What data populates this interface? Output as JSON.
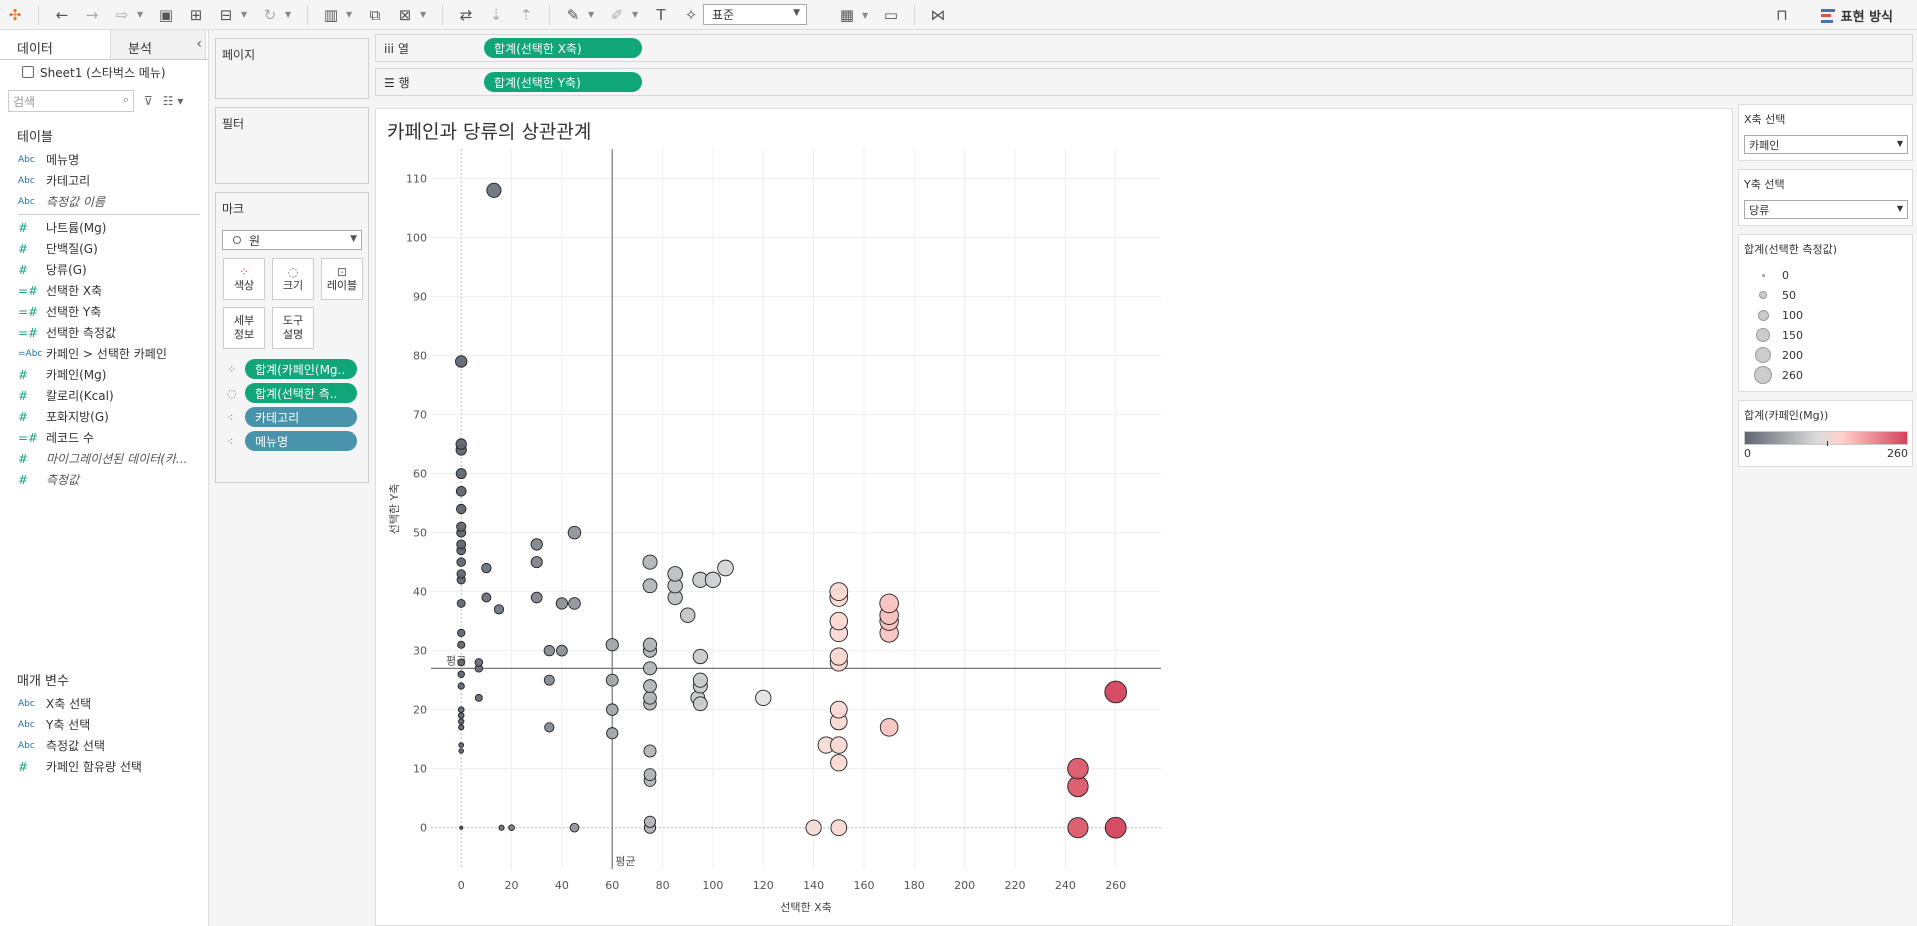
{
  "toolbar": {
    "format_select": "표준",
    "show_me_label": "표현 방식",
    "icons": [
      "tableau-logo-icon",
      "undo-icon",
      "redo-icon",
      "data-source-icon",
      "save-icon",
      "new-datasource-icon",
      "pause-icon",
      "refresh-icon",
      "new-worksheet-icon",
      "duplicate-icon",
      "clear-icon",
      "swap-icon",
      "sort-asc-icon",
      "sort-desc-icon",
      "highlight-icon",
      "annotate-icon",
      "text-icon",
      "pin-icon",
      "fit-icon",
      "presentation-icon",
      "share-icon"
    ]
  },
  "datapane": {
    "tab_data": "데이터",
    "tab_analysis": "분석",
    "source": "Sheet1 (스타벅스 메뉴)",
    "search_placeholder": "검색",
    "tables_title": "테이블",
    "fields": [
      {
        "type": "Abc",
        "label": "메뉴명"
      },
      {
        "type": "Abc",
        "label": "카테고리"
      },
      {
        "type": "Abc",
        "label": "측정값 이름",
        "italic": true
      },
      {
        "type": "#",
        "label": "나트륨(Mg)"
      },
      {
        "type": "#",
        "label": "단백질(G)"
      },
      {
        "type": "#",
        "label": "당류(G)"
      },
      {
        "type": "=#",
        "label": "선택한 X축"
      },
      {
        "type": "=#",
        "label": "선택한 Y축"
      },
      {
        "type": "=#",
        "label": "선택한 측정값"
      },
      {
        "type": "=Abc",
        "label": "카페인 > 선택한 카페인"
      },
      {
        "type": "#",
        "label": "카페인(Mg)"
      },
      {
        "type": "#",
        "label": "칼로리(Kcal)"
      },
      {
        "type": "#",
        "label": "포화지방(G)"
      },
      {
        "type": "=#",
        "label": "레코드 수"
      },
      {
        "type": "#",
        "label": "마이그레이션된 데이터(카...",
        "italic": true
      },
      {
        "type": "#",
        "label": "측정값",
        "italic": true
      }
    ],
    "params_title": "매개 변수",
    "params": [
      {
        "type": "Abc",
        "label": "X축 선택"
      },
      {
        "type": "Abc",
        "label": "Y축 선택"
      },
      {
        "type": "Abc",
        "label": "측정값 선택"
      },
      {
        "type": "#",
        "label": "카페인 함유량 선택"
      }
    ]
  },
  "shelves": {
    "pages": "페이지",
    "filters": "필터",
    "marks": "마크",
    "mark_type": "원",
    "buttons": [
      "색상",
      "크기",
      "레이블",
      "세부\n정보",
      "도구\n설명"
    ],
    "btn_color": "색상",
    "btn_size": "크기",
    "btn_label": "레이블",
    "btn_detail_1": "세부",
    "btn_detail_2": "정보",
    "btn_tooltip_1": "도구",
    "btn_tooltip_2": "설명",
    "mark_pills": [
      {
        "label": "합계(카페인(Mg..",
        "color": "green",
        "icon": "color-icon"
      },
      {
        "label": "합계(선택한 측..",
        "color": "green",
        "icon": "size-icon"
      },
      {
        "label": "카테고리",
        "color": "blue",
        "icon": "detail-icon"
      },
      {
        "label": "메뉴명",
        "color": "blue",
        "icon": "detail-icon"
      }
    ],
    "columns_label": "열",
    "rows_label": "행",
    "columns_pill": "합계(선택한 X축)",
    "rows_pill": "합계(선택한 Y축)"
  },
  "view": {
    "title": "카페인과 당류의 상관관계"
  },
  "legends": {
    "x_select_title": "X축 선택",
    "x_select_value": "카페인",
    "y_select_title": "Y축 선택",
    "y_select_value": "당류",
    "size_title": "합계(선택한 측정값)",
    "size_items": [
      "0",
      "50",
      "100",
      "150",
      "200",
      "260"
    ],
    "color_title": "합계(카페인(Mg))",
    "color_min": "0",
    "color_max": "260"
  },
  "chart_data": {
    "type": "scatter",
    "title": "카페인과 당류의 상관관계",
    "xlabel": "선택한 X축",
    "ylabel": "선택한 Y축",
    "xlim": [
      -12,
      278
    ],
    "ylim": [
      -7,
      115
    ],
    "xticks": [
      0,
      20,
      40,
      60,
      80,
      100,
      120,
      140,
      160,
      180,
      200,
      220,
      240,
      260
    ],
    "yticks": [
      0,
      10,
      20,
      30,
      40,
      50,
      60,
      70,
      80,
      90,
      100,
      110
    ],
    "reference_lines": {
      "x": 60,
      "y": 27,
      "label": "평균"
    },
    "colors": {
      "low": "#5f6670",
      "mid": "#e2e2e2",
      "high": "#d4435b"
    },
    "points": [
      [
        0,
        0
      ],
      [
        0,
        13
      ],
      [
        0,
        14
      ],
      [
        0,
        17
      ],
      [
        0,
        18
      ],
      [
        0,
        19
      ],
      [
        0,
        20
      ],
      [
        0,
        24
      ],
      [
        0,
        26
      ],
      [
        0,
        28
      ],
      [
        0,
        31
      ],
      [
        0,
        33
      ],
      [
        0,
        38
      ],
      [
        0,
        42
      ],
      [
        0,
        43
      ],
      [
        0,
        45
      ],
      [
        0,
        47
      ],
      [
        0,
        48
      ],
      [
        0,
        50
      ],
      [
        0,
        51
      ],
      [
        0,
        54
      ],
      [
        0,
        57
      ],
      [
        0,
        60
      ],
      [
        0,
        64
      ],
      [
        0,
        65
      ],
      [
        0,
        79
      ],
      [
        7,
        22
      ],
      [
        7,
        27
      ],
      [
        7,
        28
      ],
      [
        10,
        39
      ],
      [
        10,
        44
      ],
      [
        13,
        108
      ],
      [
        15,
        37
      ],
      [
        16,
        0
      ],
      [
        20,
        0
      ],
      [
        30,
        39
      ],
      [
        30,
        45
      ],
      [
        30,
        48
      ],
      [
        35,
        17
      ],
      [
        35,
        25
      ],
      [
        35,
        30
      ],
      [
        40,
        30
      ],
      [
        40,
        38
      ],
      [
        45,
        0
      ],
      [
        45,
        38
      ],
      [
        45,
        50
      ],
      [
        60,
        16
      ],
      [
        60,
        20
      ],
      [
        60,
        25
      ],
      [
        60,
        31
      ],
      [
        75,
        0
      ],
      [
        75,
        1
      ],
      [
        75,
        8
      ],
      [
        75,
        9
      ],
      [
        75,
        13
      ],
      [
        75,
        21
      ],
      [
        75,
        22
      ],
      [
        75,
        24
      ],
      [
        75,
        27
      ],
      [
        75,
        30
      ],
      [
        75,
        31
      ],
      [
        75,
        41
      ],
      [
        75,
        45
      ],
      [
        85,
        39
      ],
      [
        85,
        41
      ],
      [
        85,
        43
      ],
      [
        90,
        36
      ],
      [
        94,
        22
      ],
      [
        95,
        21
      ],
      [
        95,
        24
      ],
      [
        95,
        25
      ],
      [
        95,
        29
      ],
      [
        95,
        42
      ],
      [
        100,
        42
      ],
      [
        105,
        44
      ],
      [
        120,
        22
      ],
      [
        140,
        0
      ],
      [
        145,
        14
      ],
      [
        150,
        0
      ],
      [
        150,
        11
      ],
      [
        150,
        14
      ],
      [
        150,
        18
      ],
      [
        150,
        20
      ],
      [
        150,
        28
      ],
      [
        150,
        29
      ],
      [
        150,
        33
      ],
      [
        150,
        35
      ],
      [
        150,
        39
      ],
      [
        150,
        40
      ],
      [
        170,
        17
      ],
      [
        170,
        33
      ],
      [
        170,
        35
      ],
      [
        170,
        36
      ],
      [
        170,
        38
      ],
      [
        245,
        0
      ],
      [
        245,
        7
      ],
      [
        245,
        10
      ],
      [
        260,
        0
      ],
      [
        260,
        23
      ]
    ]
  }
}
